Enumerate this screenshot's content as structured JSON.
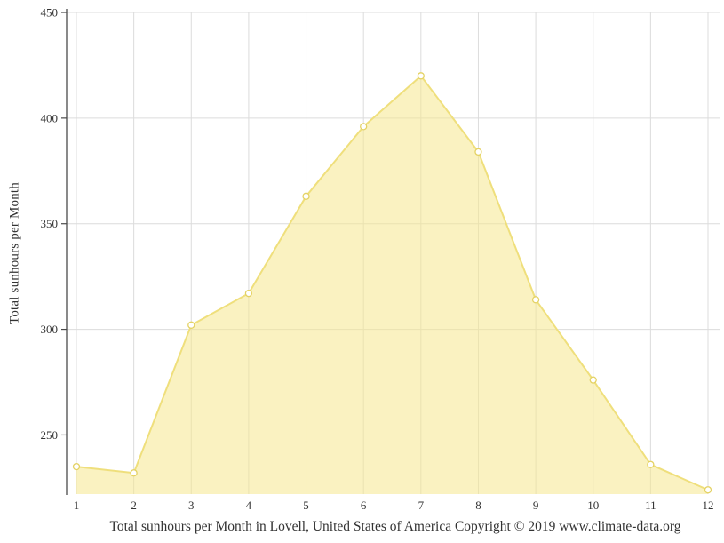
{
  "chart_data": {
    "type": "area",
    "title": "Total sunhours per Month in Lovell, United States of America Copyright © 2019 www.climate-data.org",
    "xlabel": "",
    "ylabel": "Total sunhours per Month",
    "series_name": "Total sunhours per Month",
    "x": [
      1,
      2,
      3,
      4,
      5,
      6,
      7,
      8,
      9,
      10,
      11,
      12
    ],
    "values": [
      235,
      232,
      302,
      317,
      363,
      396,
      420,
      384,
      314,
      276,
      236,
      224
    ],
    "xticks": [
      "1",
      "2",
      "3",
      "4",
      "5",
      "6",
      "7",
      "8",
      "9",
      "10",
      "11",
      "12"
    ],
    "yticks": [
      250,
      300,
      350,
      400,
      450
    ],
    "ylim": [
      222,
      450
    ],
    "grid": true,
    "legend": false,
    "colors": {
      "area_fill": "#F6E88E",
      "area_fill_opacity": "0.55",
      "line": "#EFDF7C",
      "marker_fill": "#FFFFFF",
      "marker_stroke": "#E4D264",
      "grid": "#DCDCDC",
      "axis": "#4A4A4A",
      "text": "#333333"
    }
  }
}
